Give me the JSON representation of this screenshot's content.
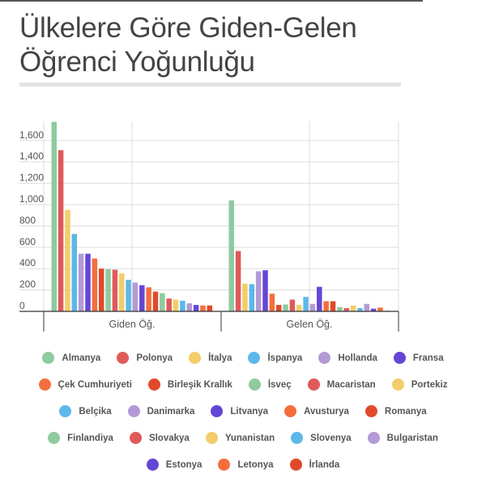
{
  "title": "Ülkelere Göre Giden-Gelen Öğrenci Yoğunluğu",
  "chart_data": {
    "type": "bar",
    "title": "Ülkelere Göre Giden-Gelen Öğrenci Yoğunluğu",
    "categories": [
      "Giden Öğ.",
      "Gelen Öğ."
    ],
    "ylim": [
      0,
      1780
    ],
    "yticks": [
      200,
      400,
      600,
      800,
      1000,
      1200,
      1400,
      1600
    ],
    "ytick_labels": [
      "200",
      "400",
      "600",
      "800",
      "1,000",
      "1,200",
      "1,400",
      "1,600"
    ],
    "y_zero_label": "0",
    "grid": true,
    "legend_position": "bottom",
    "series": [
      {
        "name": "Almanya",
        "color": "#8fcaa0",
        "values": [
          1775,
          1040
        ]
      },
      {
        "name": "Polonya",
        "color": "#e05a5a",
        "values": [
          1510,
          565
        ]
      },
      {
        "name": "İtalya",
        "color": "#f2cd6a",
        "values": [
          950,
          260
        ]
      },
      {
        "name": "İspanya",
        "color": "#5bb8e8",
        "values": [
          725,
          255
        ]
      },
      {
        "name": "Hollanda",
        "color": "#b39ad6",
        "values": [
          540,
          375
        ]
      },
      {
        "name": "Fransa",
        "color": "#6446d6",
        "values": [
          540,
          385
        ]
      },
      {
        "name": "Çek Cumhuriyeti",
        "color": "#f46e3c",
        "values": [
          495,
          165
        ]
      },
      {
        "name": "Birleşik Krallık",
        "color": "#e04a2a",
        "values": [
          400,
          60
        ]
      },
      {
        "name": "İsveç",
        "color": "#8fcaa0",
        "values": [
          395,
          65
        ]
      },
      {
        "name": "Macaristan",
        "color": "#e05a5a",
        "values": [
          390,
          110
        ]
      },
      {
        "name": "Portekiz",
        "color": "#f2cd6a",
        "values": [
          355,
          60
        ]
      },
      {
        "name": "Belçika",
        "color": "#5bb8e8",
        "values": [
          295,
          135
        ]
      },
      {
        "name": "Danimarka",
        "color": "#b39ad6",
        "values": [
          270,
          70
        ]
      },
      {
        "name": "Litvanya",
        "color": "#6446d6",
        "values": [
          245,
          230
        ]
      },
      {
        "name": "Avusturya",
        "color": "#f46e3c",
        "values": [
          225,
          95
        ]
      },
      {
        "name": "Romanya",
        "color": "#e04a2a",
        "values": [
          185,
          95
        ]
      },
      {
        "name": "Finlandiya",
        "color": "#8fcaa0",
        "values": [
          170,
          40
        ]
      },
      {
        "name": "Slovakya",
        "color": "#e05a5a",
        "values": [
          120,
          30
        ]
      },
      {
        "name": "Yunanistan",
        "color": "#f2cd6a",
        "values": [
          110,
          55
        ]
      },
      {
        "name": "Slovenya",
        "color": "#5bb8e8",
        "values": [
          100,
          30
        ]
      },
      {
        "name": "Bulgaristan",
        "color": "#b39ad6",
        "values": [
          75,
          70
        ]
      },
      {
        "name": "Estonya",
        "color": "#6446d6",
        "values": [
          60,
          25
        ]
      },
      {
        "name": "Letonya",
        "color": "#f46e3c",
        "values": [
          55,
          35
        ]
      },
      {
        "name": "İrlanda",
        "color": "#e04a2a",
        "values": [
          55,
          5
        ]
      }
    ]
  }
}
